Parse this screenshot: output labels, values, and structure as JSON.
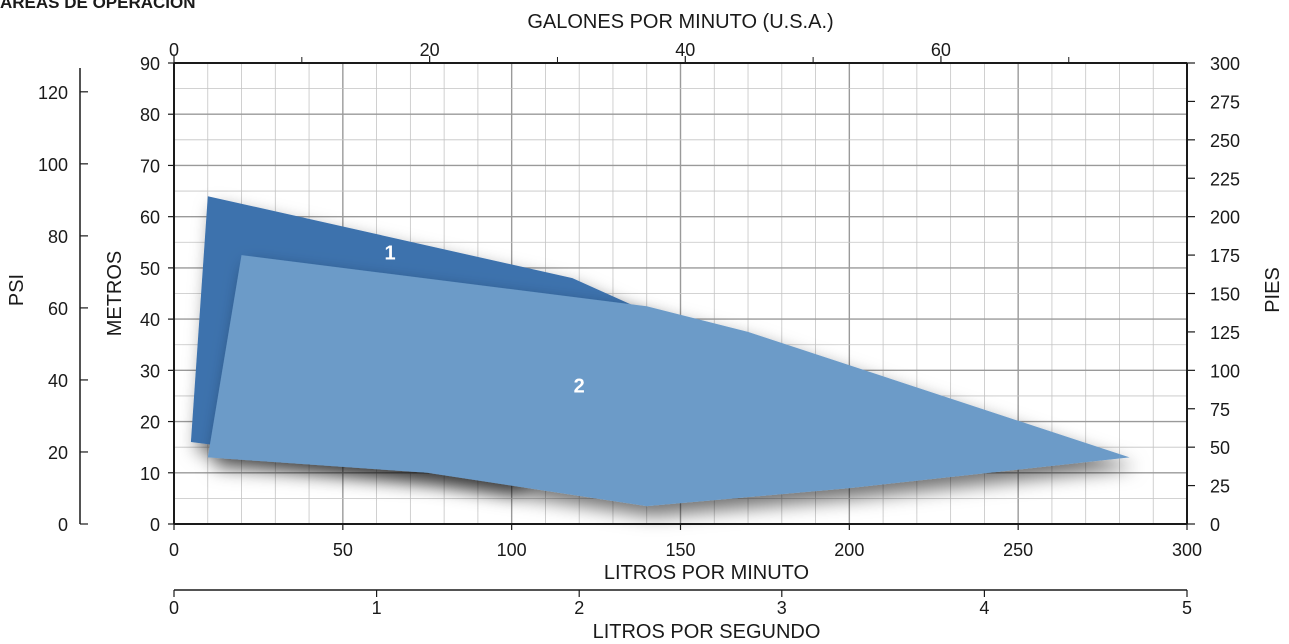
{
  "chart_data": {
    "type": "area",
    "title": "ÁREAS DE OPERACIÓN",
    "x_primary": {
      "label": "LITROS POR MINUTO",
      "range": [
        0,
        300
      ],
      "ticks": [
        0,
        50,
        100,
        150,
        200,
        250,
        300
      ]
    },
    "x_top": {
      "label": "GALONES POR MINUTO (U.S.A.)",
      "range": [
        0,
        79.25
      ],
      "ticks": [
        0,
        20,
        40,
        60
      ],
      "minor_ticks": [
        10,
        30,
        50,
        70
      ]
    },
    "x_bottom2": {
      "label": "LITROS POR SEGUNDO",
      "range": [
        0,
        5
      ],
      "ticks": [
        0,
        1,
        2,
        3,
        4,
        5
      ]
    },
    "y_primary": {
      "label": "METROS",
      "range": [
        0,
        90
      ],
      "ticks": [
        0,
        10,
        20,
        30,
        40,
        50,
        60,
        70,
        80,
        90
      ]
    },
    "y_right": {
      "label": "PIES",
      "range": [
        0,
        300
      ],
      "ticks": [
        0,
        25,
        50,
        75,
        100,
        125,
        150,
        175,
        200,
        225,
        250,
        275,
        300
      ]
    },
    "y_left2": {
      "label": "PSI",
      "range": [
        0,
        128
      ],
      "ticks": [
        0,
        20,
        40,
        60,
        80,
        100,
        120
      ]
    },
    "grid": true,
    "series": [
      {
        "name": "1",
        "color": "#3d72ad",
        "label_at": [
          64,
          53
        ],
        "polygon": [
          [
            10,
            64
          ],
          [
            118,
            48
          ],
          [
            145,
            40
          ],
          [
            100,
            8
          ],
          [
            5,
            16
          ]
        ]
      },
      {
        "name": "2",
        "color": "#6c9bc8",
        "label_at": [
          120,
          27
        ],
        "polygon": [
          [
            20,
            52.5
          ],
          [
            140,
            42.5
          ],
          [
            170,
            37.5
          ],
          [
            283,
            13
          ],
          [
            200,
            7
          ],
          [
            140,
            3.5
          ],
          [
            75,
            10
          ],
          [
            10,
            13
          ]
        ]
      }
    ]
  }
}
